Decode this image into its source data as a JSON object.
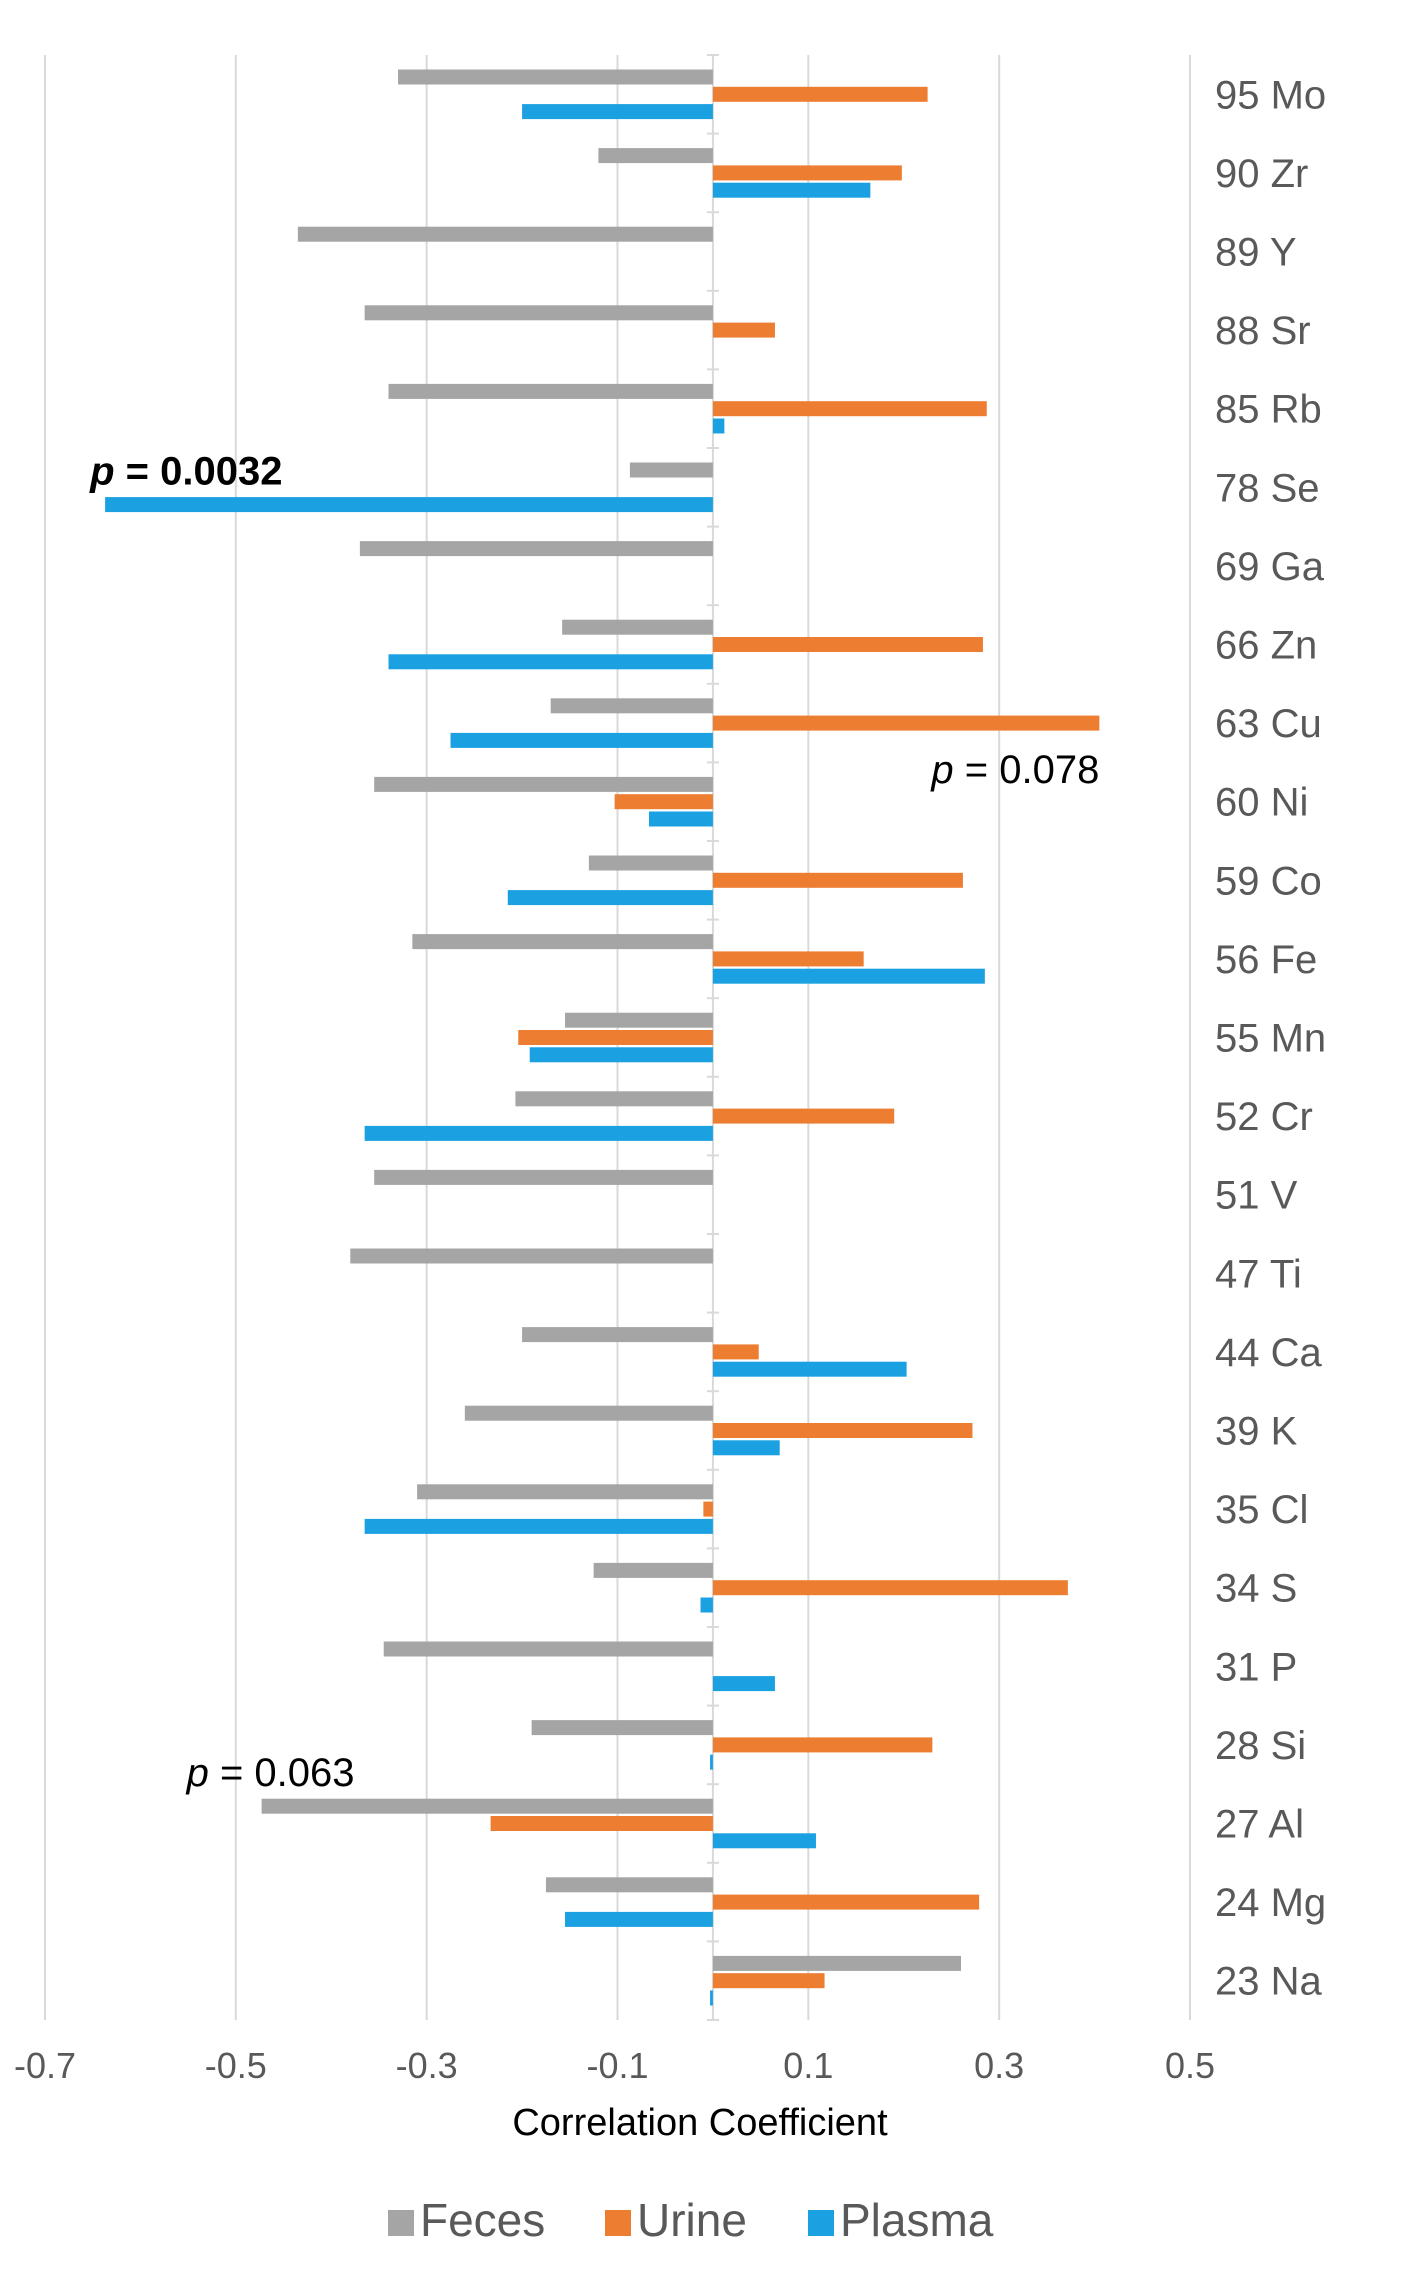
{
  "chart_data": {
    "type": "bar",
    "orientation": "horizontal",
    "title": "",
    "xlabel": "Correlation Coefficient",
    "ylabel": "",
    "xlim": [
      -0.7,
      0.5
    ],
    "x_ticks": [
      "-0.7",
      "-0.5",
      "-0.3",
      "-0.1",
      "0.1",
      "0.3",
      "0.5"
    ],
    "grid": true,
    "legend_position": "bottom",
    "categories": [
      "95 Mo",
      "90 Zr",
      "89 Y",
      "88 Sr",
      "85 Rb",
      "78 Se",
      "69 Ga",
      "66 Zn",
      "63 Cu",
      "60 Ni",
      "59 Co",
      "56 Fe",
      "55 Mn",
      "52 Cr",
      "51 V",
      "47 Ti",
      "44 Ca",
      "39 K",
      "35 Cl",
      "34 S",
      "31 P",
      "28 Si",
      "27 Al",
      "24 Mg",
      "23 Na"
    ],
    "series": [
      {
        "name": "Feces",
        "color": "#a5a5a5",
        "values": [
          -0.33,
          -0.12,
          -0.435,
          -0.365,
          -0.34,
          -0.087,
          -0.37,
          -0.158,
          -0.17,
          -0.355,
          -0.13,
          -0.315,
          -0.155,
          -0.207,
          -0.355,
          -0.38,
          -0.2,
          -0.26,
          -0.31,
          -0.125,
          -0.345,
          -0.19,
          -0.473,
          -0.175,
          0.26
        ]
      },
      {
        "name": "Urine",
        "color": "#ed7d31",
        "values": [
          0.225,
          0.198,
          0,
          0.065,
          0.287,
          0,
          0,
          0.283,
          0.405,
          -0.103,
          0.262,
          0.158,
          -0.204,
          0.19,
          0,
          0,
          0.048,
          0.272,
          -0.01,
          0.372,
          0,
          0.23,
          -0.233,
          0.279,
          0.117
        ]
      },
      {
        "name": "Plasma",
        "color": "#1ba1e2",
        "values": [
          -0.2,
          0.165,
          0,
          0,
          0.012,
          -0.637,
          0,
          -0.34,
          -0.275,
          -0.067,
          -0.215,
          0.285,
          -0.192,
          -0.365,
          0,
          0,
          0.203,
          0.07,
          -0.365,
          -0.013,
          0.065,
          -0.003,
          0.108,
          -0.155,
          -0.003
        ]
      }
    ],
    "annotations": [
      {
        "prefix": "p",
        "text": " = 0.0032",
        "bold": true,
        "category": "78 Se",
        "series": "Plasma"
      },
      {
        "prefix": "p",
        "text": " = 0.078",
        "bold": false,
        "category": "63 Cu",
        "series": "Urine"
      },
      {
        "prefix": "p",
        "text": " = 0.063",
        "bold": false,
        "category": "27 Al",
        "series": "Feces"
      }
    ]
  }
}
